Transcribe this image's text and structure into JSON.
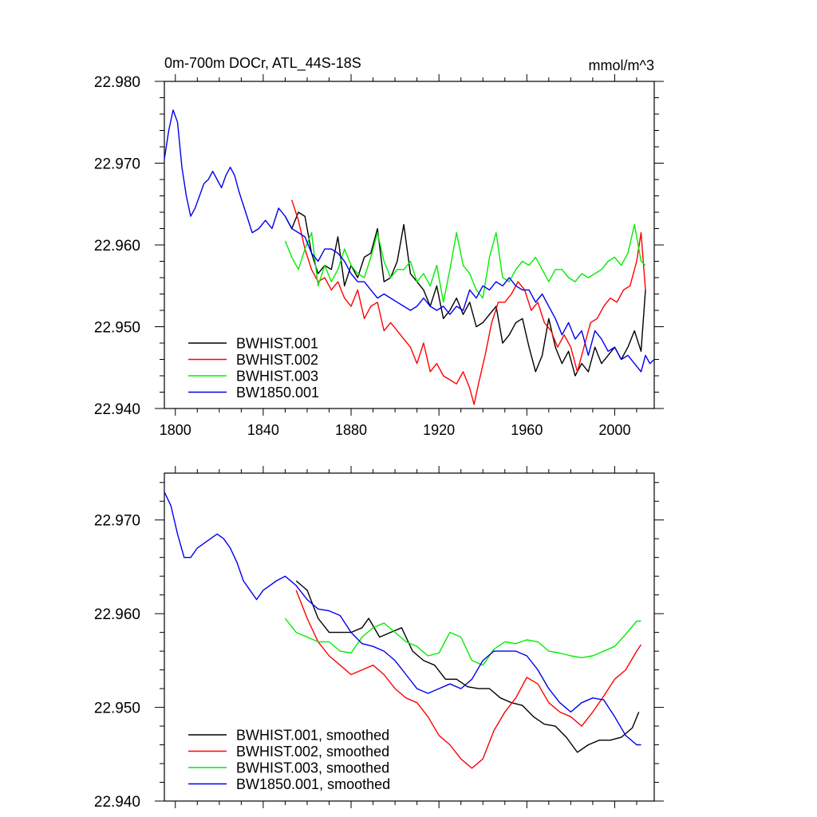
{
  "chart_data": [
    {
      "type": "line",
      "title": "0m-700m DOCr, ATL_44S-18S",
      "units": "mmol/m^3",
      "xlim": [
        1795,
        2018
      ],
      "ylim": [
        22.94,
        22.98
      ],
      "xticks": [
        1800,
        1840,
        1880,
        1920,
        1960,
        2000
      ],
      "yticks": [
        22.94,
        22.95,
        22.96,
        22.97,
        22.98
      ],
      "ytick_labels": [
        "22.940",
        "22.950",
        "22.960",
        "22.970",
        "22.980"
      ],
      "legend_position": "bottom-left",
      "series": [
        {
          "name": "BWHIST.001",
          "color": "#000000",
          "x": [
            1850,
            1853,
            1856,
            1859,
            1862,
            1865,
            1868,
            1871,
            1874,
            1877,
            1880,
            1883,
            1886,
            1889,
            1892,
            1895,
            1898,
            1901,
            1904,
            1907,
            1910,
            1913,
            1916,
            1919,
            1922,
            1925,
            1928,
            1931,
            1934,
            1937,
            1940,
            1943,
            1946,
            1949,
            1952,
            1955,
            1958,
            1961,
            1964,
            1967,
            1970,
            1973,
            1976,
            1979,
            1982,
            1985,
            1988,
            1991,
            1994,
            1997,
            2000,
            2003,
            2006,
            2009,
            2012,
            2014
          ],
          "y": [
            22.9635,
            22.962,
            22.964,
            22.9635,
            22.959,
            22.9565,
            22.9575,
            22.957,
            22.961,
            22.955,
            22.9575,
            22.956,
            22.9585,
            22.959,
            22.962,
            22.9555,
            22.956,
            22.958,
            22.9625,
            22.9565,
            22.9555,
            22.9545,
            22.9525,
            22.955,
            22.951,
            22.952,
            22.9535,
            22.9515,
            22.953,
            22.95,
            22.9505,
            22.9515,
            22.9525,
            22.948,
            22.949,
            22.9505,
            22.951,
            22.9475,
            22.9445,
            22.9465,
            22.951,
            22.9475,
            22.9455,
            22.947,
            22.944,
            22.9455,
            22.9445,
            22.9475,
            22.9455,
            22.9465,
            22.9475,
            22.946,
            22.9475,
            22.9495,
            22.947,
            22.9545
          ]
        },
        {
          "name": "BWHIST.002",
          "color": "#ff0000",
          "x": [
            1853,
            1856,
            1859,
            1862,
            1865,
            1868,
            1871,
            1874,
            1877,
            1880,
            1883,
            1886,
            1889,
            1892,
            1895,
            1898,
            1901,
            1904,
            1907,
            1910,
            1913,
            1916,
            1919,
            1922,
            1925,
            1928,
            1931,
            1934,
            1936,
            1938,
            1941,
            1944,
            1947,
            1950,
            1953,
            1956,
            1959,
            1962,
            1965,
            1968,
            1971,
            1974,
            1977,
            1980,
            1983,
            1986,
            1989,
            1992,
            1995,
            1998,
            2001,
            2004,
            2007,
            2010,
            2012,
            2014
          ],
          "y": [
            22.9655,
            22.963,
            22.9595,
            22.957,
            22.9555,
            22.956,
            22.9545,
            22.9555,
            22.9535,
            22.9525,
            22.9545,
            22.951,
            22.9525,
            22.953,
            22.9495,
            22.9505,
            22.9495,
            22.9485,
            22.9475,
            22.9455,
            22.948,
            22.9445,
            22.9455,
            22.944,
            22.9435,
            22.943,
            22.9445,
            22.9425,
            22.9405,
            22.943,
            22.9465,
            22.9505,
            22.953,
            22.953,
            22.954,
            22.9555,
            22.9545,
            22.952,
            22.953,
            22.9505,
            22.9495,
            22.9475,
            22.949,
            22.9475,
            22.9445,
            22.9475,
            22.9505,
            22.951,
            22.9525,
            22.9535,
            22.953,
            22.9545,
            22.955,
            22.958,
            22.9615,
            22.9545
          ]
        },
        {
          "name": "BWHIST.003",
          "color": "#00ee00",
          "x": [
            1850,
            1853,
            1856,
            1859,
            1862,
            1865,
            1868,
            1871,
            1874,
            1877,
            1880,
            1883,
            1886,
            1889,
            1892,
            1895,
            1898,
            1901,
            1904,
            1907,
            1910,
            1913,
            1916,
            1919,
            1922,
            1925,
            1928,
            1931,
            1934,
            1937,
            1940,
            1943,
            1946,
            1949,
            1952,
            1955,
            1958,
            1961,
            1964,
            1967,
            1970,
            1973,
            1976,
            1979,
            1982,
            1985,
            1988,
            1991,
            1994,
            1997,
            2000,
            2003,
            2006,
            2009,
            2012,
            2014
          ],
          "y": [
            22.9605,
            22.9585,
            22.957,
            22.9595,
            22.9615,
            22.955,
            22.9575,
            22.9555,
            22.957,
            22.9595,
            22.9575,
            22.9565,
            22.956,
            22.9585,
            22.9615,
            22.958,
            22.956,
            22.957,
            22.957,
            22.958,
            22.9555,
            22.9565,
            22.955,
            22.9575,
            22.953,
            22.957,
            22.9615,
            22.9575,
            22.9565,
            22.9545,
            22.9535,
            22.9585,
            22.9615,
            22.956,
            22.9555,
            22.957,
            22.958,
            22.9575,
            22.9585,
            22.957,
            22.9555,
            22.957,
            22.957,
            22.956,
            22.9555,
            22.9565,
            22.956,
            22.9565,
            22.957,
            22.958,
            22.9585,
            22.9575,
            22.959,
            22.9625,
            22.958,
            22.9575
          ]
        },
        {
          "name": "BW1850.001",
          "color": "#0000ee",
          "x": [
            1795,
            1797,
            1799,
            1801,
            1803,
            1805,
            1807,
            1809,
            1811,
            1813,
            1815,
            1817,
            1819,
            1821,
            1823,
            1825,
            1827,
            1829,
            1832,
            1835,
            1838,
            1841,
            1844,
            1847,
            1850,
            1853,
            1856,
            1859,
            1862,
            1865,
            1868,
            1871,
            1874,
            1877,
            1880,
            1883,
            1886,
            1889,
            1892,
            1895,
            1898,
            1901,
            1904,
            1907,
            1910,
            1913,
            1916,
            1919,
            1922,
            1925,
            1928,
            1931,
            1934,
            1937,
            1940,
            1943,
            1946,
            1949,
            1952,
            1955,
            1958,
            1961,
            1964,
            1967,
            1970,
            1973,
            1976,
            1979,
            1982,
            1985,
            1988,
            1991,
            1994,
            1997,
            2000,
            2003,
            2006,
            2009,
            2012,
            2014,
            2016,
            2018
          ],
          "y": [
            22.9705,
            22.974,
            22.9765,
            22.975,
            22.9695,
            22.966,
            22.9635,
            22.9645,
            22.966,
            22.9675,
            22.968,
            22.969,
            22.968,
            22.967,
            22.9685,
            22.9695,
            22.9685,
            22.9665,
            22.964,
            22.9615,
            22.962,
            22.963,
            22.962,
            22.9645,
            22.9635,
            22.962,
            22.9615,
            22.961,
            22.959,
            22.958,
            22.9595,
            22.9595,
            22.959,
            22.958,
            22.9565,
            22.9555,
            22.9555,
            22.9545,
            22.9535,
            22.954,
            22.9535,
            22.953,
            22.9525,
            22.952,
            22.9525,
            22.9535,
            22.9525,
            22.952,
            22.9525,
            22.9515,
            22.9525,
            22.952,
            22.9545,
            22.9535,
            22.955,
            22.9545,
            22.9555,
            22.955,
            22.956,
            22.955,
            22.9545,
            22.9545,
            22.953,
            22.954,
            22.9525,
            22.951,
            22.949,
            22.9505,
            22.9485,
            22.9495,
            22.9465,
            22.9495,
            22.9485,
            22.947,
            22.9475,
            22.946,
            22.9465,
            22.9455,
            22.9445,
            22.9465,
            22.9455,
            22.946
          ]
        }
      ]
    },
    {
      "type": "line",
      "title": "",
      "units": "",
      "xlim": [
        1795,
        2018
      ],
      "ylim": [
        22.94,
        22.975
      ],
      "xticks": [
        1800,
        1840,
        1880,
        1920,
        1960,
        2000
      ],
      "yticks": [
        22.94,
        22.95,
        22.96,
        22.97
      ],
      "ytick_labels": [
        "22.940",
        "22.950",
        "22.960",
        "22.970"
      ],
      "legend_position": "bottom-left",
      "series": [
        {
          "name": "BWHIST.001, smoothed",
          "color": "#000000",
          "x": [
            1855,
            1860,
            1865,
            1870,
            1875,
            1880,
            1885,
            1888,
            1893,
            1898,
            1903,
            1908,
            1913,
            1918,
            1923,
            1928,
            1933,
            1938,
            1943,
            1948,
            1953,
            1958,
            1963,
            1968,
            1973,
            1978,
            1983,
            1988,
            1993,
            1998,
            2003,
            2008,
            2011
          ],
          "y": [
            22.9635,
            22.9625,
            22.9595,
            22.958,
            22.958,
            22.958,
            22.9585,
            22.9595,
            22.9575,
            22.958,
            22.9585,
            22.956,
            22.955,
            22.9545,
            22.953,
            22.953,
            22.9522,
            22.952,
            22.952,
            22.951,
            22.9505,
            22.9502,
            22.949,
            22.9482,
            22.948,
            22.9468,
            22.9452,
            22.946,
            22.9465,
            22.9465,
            22.9468,
            22.9478,
            22.9495
          ]
        },
        {
          "name": "BWHIST.002, smoothed",
          "color": "#ff0000",
          "x": [
            1855,
            1860,
            1865,
            1870,
            1875,
            1880,
            1885,
            1890,
            1895,
            1900,
            1905,
            1910,
            1915,
            1920,
            1925,
            1930,
            1935,
            1940,
            1945,
            1950,
            1955,
            1960,
            1965,
            1970,
            1975,
            1980,
            1985,
            1990,
            1995,
            2000,
            2005,
            2010,
            2012
          ],
          "y": [
            22.9625,
            22.9595,
            22.957,
            22.9555,
            22.9545,
            22.9535,
            22.954,
            22.9545,
            22.9535,
            22.952,
            22.951,
            22.9505,
            22.949,
            22.947,
            22.946,
            22.9445,
            22.9435,
            22.9445,
            22.9475,
            22.9495,
            22.951,
            22.9532,
            22.9525,
            22.9505,
            22.9495,
            22.949,
            22.948,
            22.9495,
            22.9512,
            22.953,
            22.954,
            22.956,
            22.9567
          ]
        },
        {
          "name": "BWHIST.003, smoothed",
          "color": "#00ee00",
          "x": [
            1850,
            1855,
            1860,
            1865,
            1870,
            1875,
            1880,
            1885,
            1890,
            1895,
            1900,
            1905,
            1910,
            1915,
            1920,
            1925,
            1930,
            1935,
            1940,
            1945,
            1950,
            1955,
            1960,
            1965,
            1970,
            1975,
            1980,
            1985,
            1990,
            1995,
            2000,
            2005,
            2010,
            2012
          ],
          "y": [
            22.9595,
            22.958,
            22.9575,
            22.957,
            22.957,
            22.956,
            22.9558,
            22.9575,
            22.9585,
            22.959,
            22.958,
            22.957,
            22.9565,
            22.9555,
            22.9558,
            22.958,
            22.9575,
            22.955,
            22.9545,
            22.9562,
            22.957,
            22.9568,
            22.9572,
            22.957,
            22.956,
            22.9558,
            22.9555,
            22.9553,
            22.9555,
            22.956,
            22.9565,
            22.9578,
            22.9592,
            22.9592
          ]
        },
        {
          "name": "BW1850.001, smoothed",
          "color": "#0000ee",
          "x": [
            1795,
            1798,
            1801,
            1804,
            1807,
            1810,
            1813,
            1816,
            1819,
            1822,
            1825,
            1828,
            1831,
            1834,
            1837,
            1840,
            1843,
            1846,
            1850,
            1855,
            1860,
            1865,
            1870,
            1875,
            1880,
            1885,
            1890,
            1895,
            1900,
            1905,
            1910,
            1915,
            1920,
            1925,
            1930,
            1935,
            1940,
            1945,
            1950,
            1955,
            1960,
            1965,
            1970,
            1975,
            1980,
            1985,
            1990,
            1995,
            2000,
            2005,
            2010,
            2012
          ],
          "y": [
            22.973,
            22.9715,
            22.9685,
            22.966,
            22.966,
            22.967,
            22.9675,
            22.968,
            22.9685,
            22.968,
            22.967,
            22.9655,
            22.9635,
            22.9625,
            22.9615,
            22.9625,
            22.963,
            22.9635,
            22.964,
            22.963,
            22.9615,
            22.9605,
            22.9603,
            22.9598,
            22.958,
            22.9568,
            22.9565,
            22.956,
            22.955,
            22.9535,
            22.952,
            22.9515,
            22.952,
            22.9525,
            22.952,
            22.953,
            22.955,
            22.956,
            22.956,
            22.956,
            22.9555,
            22.954,
            22.952,
            22.9505,
            22.9495,
            22.9505,
            22.951,
            22.9508,
            22.949,
            22.947,
            22.946,
            22.946
          ]
        }
      ]
    }
  ]
}
